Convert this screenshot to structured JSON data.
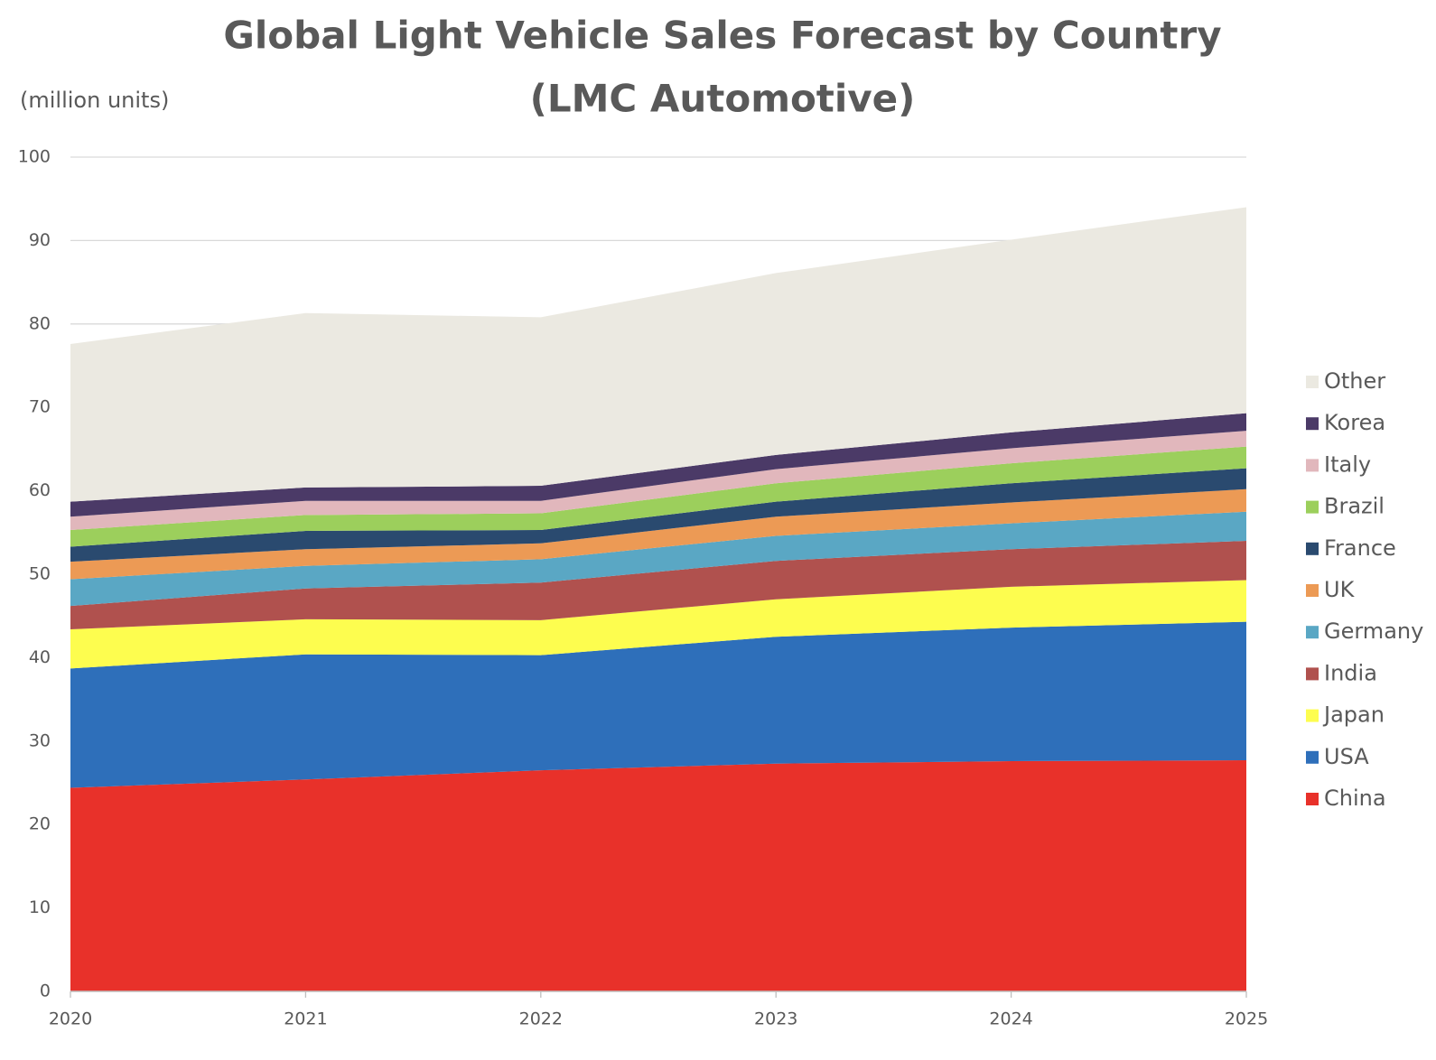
{
  "chart_data": {
    "type": "stacked_area",
    "title": "Global Light Vehicle Sales Forecast by Country",
    "subtitle": "(LMC Automotive)",
    "y_label": "(million units)",
    "x": [
      2020,
      2021,
      2022,
      2023,
      2024,
      2025
    ],
    "xlim": [
      2020,
      2025
    ],
    "xticks": [
      2020,
      2021,
      2022,
      2023,
      2024,
      2025
    ],
    "ylim": [
      0,
      100
    ],
    "yticks": [
      0,
      10,
      20,
      30,
      40,
      50,
      60,
      70,
      80,
      90,
      100
    ],
    "grid": true,
    "legend": "right",
    "series": [
      {
        "name": "China",
        "color": "#e8312a",
        "values": [
          24.4,
          25.4,
          26.5,
          27.3,
          27.6,
          27.7
        ]
      },
      {
        "name": "USA",
        "color": "#2e6fba",
        "values": [
          14.3,
          15.0,
          13.8,
          15.2,
          16.0,
          16.6
        ]
      },
      {
        "name": "Japan",
        "color": "#fdfd4f",
        "values": [
          4.7,
          4.2,
          4.2,
          4.5,
          4.9,
          5.0
        ]
      },
      {
        "name": "India",
        "color": "#b0514e",
        "values": [
          2.8,
          3.7,
          4.5,
          4.6,
          4.5,
          4.7
        ]
      },
      {
        "name": "Germany",
        "color": "#5aa7c4",
        "values": [
          3.2,
          2.7,
          2.8,
          3.0,
          3.1,
          3.5
        ]
      },
      {
        "name": "UK",
        "color": "#ec9a55",
        "values": [
          2.1,
          2.0,
          1.9,
          2.3,
          2.5,
          2.7
        ]
      },
      {
        "name": "France",
        "color": "#2a4a6f",
        "values": [
          1.8,
          2.2,
          1.6,
          1.8,
          2.3,
          2.5
        ]
      },
      {
        "name": "Brazil",
        "color": "#9ccf5c",
        "values": [
          2.0,
          1.9,
          2.0,
          2.2,
          2.4,
          2.6
        ]
      },
      {
        "name": "Italy",
        "color": "#e1b7bc",
        "values": [
          1.6,
          1.7,
          1.5,
          1.7,
          1.8,
          1.9
        ]
      },
      {
        "name": "Korea",
        "color": "#4b3a67",
        "values": [
          1.8,
          1.6,
          1.8,
          1.7,
          1.9,
          2.1
        ]
      },
      {
        "name": "Other",
        "color": "#ebe9e1",
        "values": [
          18.9,
          20.9,
          20.2,
          21.8,
          23.1,
          24.7
        ]
      }
    ]
  }
}
